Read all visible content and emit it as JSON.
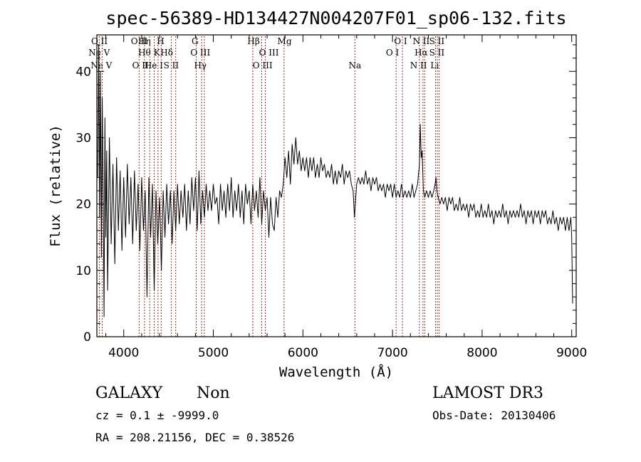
{
  "chart_data": {
    "type": "line",
    "title": "spec-56389-HD134427N004207F01_sp06-132.fits",
    "xlabel": "Wavelength (Å)",
    "ylabel": "Flux (relative)",
    "xlim": [
      3700,
      9050
    ],
    "ylim": [
      0,
      45.5
    ],
    "xticks": [
      4000,
      5000,
      6000,
      7000,
      8000,
      9000
    ],
    "yticks": [
      0,
      10,
      20,
      30,
      40
    ],
    "grid": false,
    "line_color": "#000000",
    "marker_color": "#b22222",
    "spectral_lines": [
      {
        "label": "Ne V",
        "wavelength": 3726,
        "row": 1
      },
      {
        "label": "O II",
        "wavelength": 3728,
        "row": 0
      },
      {
        "label": "Ne V",
        "wavelength": 3750,
        "row": 2
      },
      {
        "label": "O II",
        "wavelength": 4172,
        "row": 0
      },
      {
        "label": "Hη",
        "wavelength": 4232,
        "row": 0
      },
      {
        "label": "O II",
        "wavelength": 4186,
        "row": 2
      },
      {
        "label": "Hθ",
        "wavelength": 4232,
        "row": 1
      },
      {
        "label": "H",
        "wavelength": 4412,
        "row": 0
      },
      {
        "label": "He I",
        "wavelength": 4335,
        "row": 2
      },
      {
        "label": "K",
        "wavelength": 4370,
        "row": 1
      },
      {
        "label": "Hδ",
        "wavelength": 4480,
        "row": 1
      },
      {
        "label": "S II",
        "wavelength": 4530,
        "row": 2
      },
      {
        "label": "G",
        "wavelength": 4795,
        "row": 0
      },
      {
        "label": "O III",
        "wavelength": 4855,
        "row": 1
      },
      {
        "label": "Hγ",
        "wavelength": 4855,
        "row": 2
      },
      {
        "label": "Hβ",
        "wavelength": 5450,
        "row": 0
      },
      {
        "label": "O III",
        "wavelength": 5620,
        "row": 1
      },
      {
        "label": "O III",
        "wavelength": 5550,
        "row": 2
      },
      {
        "label": "Mg",
        "wavelength": 5795,
        "row": 0
      },
      {
        "label": "Na",
        "wavelength": 6580,
        "row": 2
      },
      {
        "label": "O I",
        "wavelength": 7090,
        "row": 0
      },
      {
        "label": "O I",
        "wavelength": 7000,
        "row": 1
      },
      {
        "label": "N II",
        "wavelength": 7320,
        "row": 0
      },
      {
        "label": "Hα",
        "wavelength": 7320,
        "row": 1
      },
      {
        "label": "N II",
        "wavelength": 7290,
        "row": 2
      },
      {
        "label": "S II",
        "wavelength": 7495,
        "row": 0
      },
      {
        "label": "S II",
        "wavelength": 7495,
        "row": 1
      },
      {
        "label": "Li",
        "wavelength": 7470,
        "row": 2
      }
    ],
    "marker_lines": [
      3728,
      3760,
      4172,
      4232,
      4290,
      4340,
      4383,
      4418,
      4530,
      4580,
      4810,
      4870,
      4900,
      5440,
      5540,
      5580,
      5790,
      6580,
      7040,
      7110,
      7300,
      7340,
      7360,
      7480,
      7500,
      7520
    ],
    "series": [
      {
        "values": [
          [
            3710,
            24
          ],
          [
            3720,
            44
          ],
          [
            3730,
            18
          ],
          [
            3740,
            40
          ],
          [
            3750,
            12
          ],
          [
            3760,
            36
          ],
          [
            3770,
            22
          ],
          [
            3780,
            3
          ],
          [
            3790,
            33
          ],
          [
            3800,
            15
          ],
          [
            3810,
            28
          ],
          [
            3820,
            7
          ],
          [
            3840,
            30
          ],
          [
            3860,
            14
          ],
          [
            3880,
            26
          ],
          [
            3900,
            11
          ],
          [
            3920,
            27
          ],
          [
            3940,
            16
          ],
          [
            3960,
            25
          ],
          [
            3980,
            13
          ],
          [
            4000,
            24
          ],
          [
            4020,
            15
          ],
          [
            4040,
            26
          ],
          [
            4060,
            17
          ],
          [
            4080,
            24
          ],
          [
            4100,
            14
          ],
          [
            4120,
            25
          ],
          [
            4140,
            16
          ],
          [
            4160,
            23
          ],
          [
            4180,
            13
          ],
          [
            4200,
            24
          ],
          [
            4220,
            16
          ],
          [
            4240,
            22
          ],
          [
            4260,
            6
          ],
          [
            4280,
            24
          ],
          [
            4300,
            15
          ],
          [
            4320,
            23
          ],
          [
            4340,
            7
          ],
          [
            4360,
            22
          ],
          [
            4380,
            14
          ],
          [
            4400,
            21
          ],
          [
            4420,
            10
          ],
          [
            4440,
            22
          ],
          [
            4460,
            15
          ],
          [
            4480,
            23
          ],
          [
            4500,
            17
          ],
          [
            4520,
            22
          ],
          [
            4540,
            14
          ],
          [
            4560,
            22
          ],
          [
            4580,
            16
          ],
          [
            4600,
            23
          ],
          [
            4620,
            17
          ],
          [
            4640,
            22
          ],
          [
            4660,
            18
          ],
          [
            4680,
            23
          ],
          [
            4700,
            16
          ],
          [
            4720,
            22
          ],
          [
            4740,
            17
          ],
          [
            4760,
            24
          ],
          [
            4780,
            19
          ],
          [
            4800,
            24
          ],
          [
            4820,
            16
          ],
          [
            4840,
            25
          ],
          [
            4860,
            17
          ],
          [
            4880,
            22
          ],
          [
            4900,
            18
          ],
          [
            4920,
            23
          ],
          [
            4940,
            19
          ],
          [
            4960,
            22
          ],
          [
            4980,
            19
          ],
          [
            5000,
            23
          ],
          [
            5020,
            20
          ],
          [
            5040,
            21
          ],
          [
            5060,
            17
          ],
          [
            5080,
            23
          ],
          [
            5100,
            19
          ],
          [
            5120,
            22
          ],
          [
            5140,
            18
          ],
          [
            5160,
            23
          ],
          [
            5180,
            19
          ],
          [
            5200,
            24
          ],
          [
            5220,
            18
          ],
          [
            5240,
            22
          ],
          [
            5260,
            19
          ],
          [
            5280,
            23
          ],
          [
            5300,
            18
          ],
          [
            5320,
            22
          ],
          [
            5340,
            17
          ],
          [
            5360,
            23
          ],
          [
            5380,
            20
          ],
          [
            5400,
            22
          ],
          [
            5420,
            17
          ],
          [
            5440,
            23
          ],
          [
            5460,
            19
          ],
          [
            5480,
            22
          ],
          [
            5500,
            18
          ],
          [
            5520,
            24
          ],
          [
            5540,
            17
          ],
          [
            5560,
            22
          ],
          [
            5580,
            19
          ],
          [
            5600,
            21
          ],
          [
            5620,
            15
          ],
          [
            5640,
            21
          ],
          [
            5660,
            17
          ],
          [
            5680,
            16
          ],
          [
            5700,
            21
          ],
          [
            5720,
            18
          ],
          [
            5740,
            22
          ],
          [
            5760,
            21
          ],
          [
            5780,
            23
          ],
          [
            5800,
            27
          ],
          [
            5820,
            24
          ],
          [
            5840,
            28
          ],
          [
            5860,
            23
          ],
          [
            5880,
            29
          ],
          [
            5900,
            26
          ],
          [
            5920,
            30
          ],
          [
            5940,
            26
          ],
          [
            5960,
            28
          ],
          [
            5980,
            25
          ],
          [
            6000,
            27
          ],
          [
            6020,
            25
          ],
          [
            6040,
            27
          ],
          [
            6060,
            24
          ],
          [
            6080,
            27
          ],
          [
            6100,
            25
          ],
          [
            6120,
            27
          ],
          [
            6140,
            24
          ],
          [
            6160,
            26
          ],
          [
            6180,
            24
          ],
          [
            6200,
            27
          ],
          [
            6220,
            25
          ],
          [
            6240,
            26
          ],
          [
            6260,
            24
          ],
          [
            6280,
            25
          ],
          [
            6300,
            24
          ],
          [
            6320,
            26
          ],
          [
            6340,
            23
          ],
          [
            6360,
            25
          ],
          [
            6380,
            23
          ],
          [
            6400,
            25
          ],
          [
            6420,
            24
          ],
          [
            6440,
            26
          ],
          [
            6460,
            23
          ],
          [
            6480,
            25
          ],
          [
            6500,
            24
          ],
          [
            6520,
            25
          ],
          [
            6540,
            23
          ],
          [
            6560,
            22
          ],
          [
            6575,
            18
          ],
          [
            6590,
            21
          ],
          [
            6600,
            23
          ],
          [
            6620,
            24
          ],
          [
            6640,
            23
          ],
          [
            6660,
            24
          ],
          [
            6680,
            23
          ],
          [
            6700,
            25
          ],
          [
            6720,
            23
          ],
          [
            6740,
            24
          ],
          [
            6760,
            22
          ],
          [
            6780,
            24
          ],
          [
            6800,
            23
          ],
          [
            6820,
            24
          ],
          [
            6840,
            22
          ],
          [
            6860,
            23
          ],
          [
            6880,
            22
          ],
          [
            6900,
            23
          ],
          [
            6920,
            21
          ],
          [
            6940,
            23
          ],
          [
            6960,
            22
          ],
          [
            6980,
            23
          ],
          [
            7000,
            21
          ],
          [
            7020,
            23
          ],
          [
            7040,
            21
          ],
          [
            7060,
            22
          ],
          [
            7080,
            21
          ],
          [
            7100,
            23
          ],
          [
            7120,
            21
          ],
          [
            7140,
            22
          ],
          [
            7160,
            21
          ],
          [
            7180,
            22
          ],
          [
            7200,
            21
          ],
          [
            7220,
            23
          ],
          [
            7240,
            21
          ],
          [
            7260,
            22
          ],
          [
            7280,
            23
          ],
          [
            7300,
            26
          ],
          [
            7310,
            32
          ],
          [
            7320,
            27
          ],
          [
            7330,
            28
          ],
          [
            7345,
            22
          ],
          [
            7360,
            21
          ],
          [
            7380,
            22
          ],
          [
            7400,
            21
          ],
          [
            7420,
            22
          ],
          [
            7440,
            21
          ],
          [
            7460,
            22
          ],
          [
            7475,
            23
          ],
          [
            7485,
            24
          ],
          [
            7495,
            22
          ],
          [
            7510,
            21
          ],
          [
            7530,
            20
          ],
          [
            7550,
            21
          ],
          [
            7570,
            20
          ],
          [
            7590,
            21
          ],
          [
            7610,
            19
          ],
          [
            7630,
            21
          ],
          [
            7650,
            20
          ],
          [
            7670,
            21
          ],
          [
            7690,
            19
          ],
          [
            7710,
            20
          ],
          [
            7730,
            19
          ],
          [
            7750,
            21
          ],
          [
            7770,
            19
          ],
          [
            7790,
            20
          ],
          [
            7810,
            19
          ],
          [
            7830,
            20
          ],
          [
            7850,
            18
          ],
          [
            7870,
            20
          ],
          [
            7890,
            19
          ],
          [
            7910,
            20
          ],
          [
            7930,
            18
          ],
          [
            7950,
            19
          ],
          [
            7970,
            18
          ],
          [
            7990,
            20
          ],
          [
            8010,
            18
          ],
          [
            8030,
            19
          ],
          [
            8050,
            18
          ],
          [
            8070,
            20
          ],
          [
            8090,
            18
          ],
          [
            8110,
            19
          ],
          [
            8130,
            17
          ],
          [
            8150,
            19
          ],
          [
            8170,
            18
          ],
          [
            8190,
            19
          ],
          [
            8210,
            18
          ],
          [
            8230,
            20
          ],
          [
            8250,
            18
          ],
          [
            8270,
            19
          ],
          [
            8290,
            17
          ],
          [
            8310,
            19
          ],
          [
            8330,
            18
          ],
          [
            8350,
            19
          ],
          [
            8370,
            18
          ],
          [
            8390,
            19
          ],
          [
            8410,
            18
          ],
          [
            8430,
            20
          ],
          [
            8450,
            18
          ],
          [
            8470,
            19
          ],
          [
            8490,
            17
          ],
          [
            8510,
            19
          ],
          [
            8530,
            18
          ],
          [
            8550,
            19
          ],
          [
            8570,
            17
          ],
          [
            8590,
            19
          ],
          [
            8610,
            18
          ],
          [
            8630,
            19
          ],
          [
            8650,
            17
          ],
          [
            8670,
            19
          ],
          [
            8690,
            18
          ],
          [
            8710,
            19
          ],
          [
            8730,
            17
          ],
          [
            8750,
            18
          ],
          [
            8770,
            17
          ],
          [
            8790,
            19
          ],
          [
            8810,
            17
          ],
          [
            8830,
            18
          ],
          [
            8850,
            16
          ],
          [
            8870,
            18
          ],
          [
            8890,
            17
          ],
          [
            8910,
            18
          ],
          [
            8930,
            16
          ],
          [
            8950,
            18
          ],
          [
            8970,
            16
          ],
          [
            8990,
            18
          ],
          [
            9000,
            15
          ],
          [
            9010,
            5
          ]
        ]
      }
    ]
  },
  "info": {
    "object_class": "GALAXY",
    "subclass": "Non",
    "cz": "cz = 0.1 ± -9999.0",
    "radec": "RA = 208.21156, DEC =    0.38526",
    "survey": "LAMOST DR3",
    "obs_date": "Obs-Date: 20130406"
  }
}
